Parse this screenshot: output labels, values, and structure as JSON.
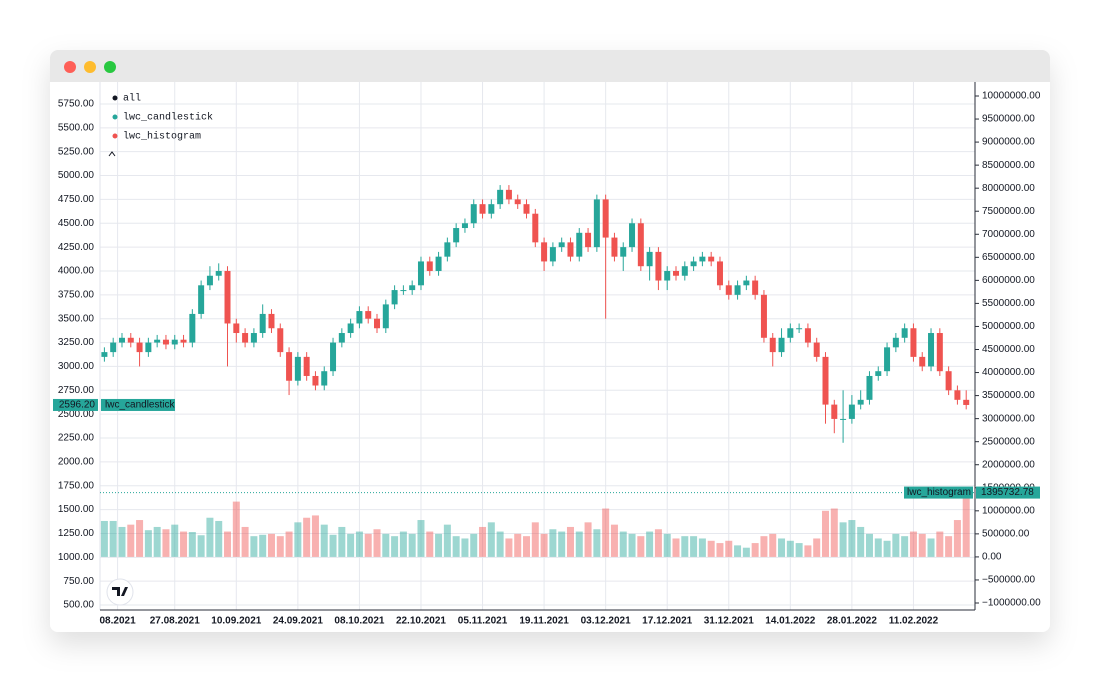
{
  "chart_data": {
    "type": "candlestick",
    "legend_title": "all",
    "legend_position": "top-left",
    "grid": true,
    "x": [
      "11.08.2021",
      "13.08.2021",
      "15.08.2021",
      "17.08.2021",
      "19.08.2021",
      "21.08.2021",
      "23.08.2021",
      "25.08.2021",
      "27.08.2021",
      "29.08.2021",
      "31.08.2021",
      "02.09.2021",
      "04.09.2021",
      "06.09.2021",
      "08.09.2021",
      "10.09.2021",
      "12.09.2021",
      "14.09.2021",
      "16.09.2021",
      "18.09.2021",
      "20.09.2021",
      "22.09.2021",
      "24.09.2021",
      "26.09.2021",
      "28.09.2021",
      "30.09.2021",
      "02.10.2021",
      "04.10.2021",
      "06.10.2021",
      "08.10.2021",
      "10.10.2021",
      "12.10.2021",
      "14.10.2021",
      "16.10.2021",
      "18.10.2021",
      "20.10.2021",
      "22.10.2021",
      "24.10.2021",
      "26.10.2021",
      "28.10.2021",
      "30.10.2021",
      "01.11.2021",
      "03.11.2021",
      "05.11.2021",
      "07.11.2021",
      "09.11.2021",
      "11.11.2021",
      "13.11.2021",
      "15.11.2021",
      "17.11.2021",
      "19.11.2021",
      "21.11.2021",
      "23.11.2021",
      "25.11.2021",
      "27.11.2021",
      "29.11.2021",
      "01.12.2021",
      "03.12.2021",
      "05.12.2021",
      "07.12.2021",
      "09.12.2021",
      "11.12.2021",
      "13.12.2021",
      "15.12.2021",
      "17.12.2021",
      "19.12.2021",
      "21.12.2021",
      "23.12.2021",
      "25.12.2021",
      "27.12.2021",
      "29.12.2021",
      "31.12.2021",
      "02.01.2022",
      "04.01.2022",
      "06.01.2022",
      "08.01.2022",
      "10.01.2022",
      "12.01.2022",
      "14.01.2022",
      "16.01.2022",
      "18.01.2022",
      "20.01.2022",
      "22.01.2022",
      "24.01.2022",
      "26.01.2022",
      "28.01.2022",
      "30.01.2022",
      "01.02.2022",
      "03.02.2022",
      "05.02.2022",
      "07.02.2022",
      "09.02.2022",
      "11.02.2022",
      "13.02.2022",
      "15.02.2022",
      "17.02.2022",
      "19.02.2022",
      "21.02.2022",
      "23.02.2022"
    ],
    "xlim": [
      "10.08.2021",
      "25.02.2022"
    ],
    "xticks": [
      {
        "value": "14.08.2021",
        "label": "08.2021"
      },
      "27.08.2021",
      "10.09.2021",
      "24.09.2021",
      "08.10.2021",
      "22.10.2021",
      "05.11.2021",
      "19.11.2021",
      "03.12.2021",
      "17.12.2021",
      "31.12.2021",
      "14.01.2022",
      "28.01.2022",
      "11.02.2022"
    ],
    "ylim": [
      448,
      5980
    ],
    "yticks": [
      {
        "value": 500,
        "label": "500.00"
      },
      {
        "value": 750,
        "label": "750.00"
      },
      {
        "value": 1000,
        "label": "1000.00"
      },
      {
        "value": 1250,
        "label": "1250.00"
      },
      {
        "value": 1500,
        "label": "1500.00"
      },
      {
        "value": 1750,
        "label": "1750.00"
      },
      {
        "value": 2000,
        "label": "2000.00"
      },
      {
        "value": 2250,
        "label": "2250.00"
      },
      {
        "value": 2500,
        "label": "2500.00"
      },
      {
        "value": 2750,
        "label": "2750.00"
      },
      {
        "value": 3000,
        "label": "3000.00"
      },
      {
        "value": 3250,
        "label": "3250.00"
      },
      {
        "value": 3500,
        "label": "3500.00"
      },
      {
        "value": 3750,
        "label": "3750.00"
      },
      {
        "value": 4000,
        "label": "4000.00"
      },
      {
        "value": 4250,
        "label": "4250.00"
      },
      {
        "value": 4500,
        "label": "4500.00"
      },
      {
        "value": 4750,
        "label": "4750.00"
      },
      {
        "value": 5000,
        "label": "5000.00"
      },
      {
        "value": 5250,
        "label": "5250.00"
      },
      {
        "value": 5500,
        "label": "5500.00"
      },
      {
        "value": 5750,
        "label": "5750.00"
      }
    ],
    "y2lim": [
      -1151800,
      10303700
    ],
    "y2ticks": [
      {
        "value": -1000000,
        "label": "−1000000.00"
      },
      {
        "value": -500000,
        "label": "−500000.00"
      },
      {
        "value": 0,
        "label": "0.00"
      },
      {
        "value": 500000,
        "label": "500000.00"
      },
      {
        "value": 1000000,
        "label": "1000000.00"
      },
      {
        "value": 1500000,
        "label": "1500000.00"
      },
      {
        "value": 2000000,
        "label": "2000000.00"
      },
      {
        "value": 2500000,
        "label": "2500000.00"
      },
      {
        "value": 3000000,
        "label": "3000000.00"
      },
      {
        "value": 3500000,
        "label": "3500000.00"
      },
      {
        "value": 4000000,
        "label": "4000000.00"
      },
      {
        "value": 4500000,
        "label": "4500000.00"
      },
      {
        "value": 5000000,
        "label": "5000000.00"
      },
      {
        "value": 5500000,
        "label": "5500000.00"
      },
      {
        "value": 6000000,
        "label": "6000000.00"
      },
      {
        "value": 6500000,
        "label": "6500000.00"
      },
      {
        "value": 7000000,
        "label": "7000000.00"
      },
      {
        "value": 7500000,
        "label": "7500000.00"
      },
      {
        "value": 8000000,
        "label": "8000000.00"
      },
      {
        "value": 8500000,
        "label": "8500000.00"
      },
      {
        "value": 9000000,
        "label": "9000000.00"
      },
      {
        "value": 9500000,
        "label": "9500000.00"
      },
      {
        "value": 10000000,
        "label": "10000000.00"
      }
    ],
    "series": [
      {
        "name": "lwc_candlestick",
        "type": "candlestick",
        "color": "#26a69a",
        "up_color": "#26a69a",
        "down_color": "#ef5350",
        "last_label": "2596.20",
        "open": [
          3100,
          3150,
          3250,
          3300,
          3250,
          3150,
          3250,
          3280,
          3230,
          3280,
          3250,
          3550,
          3850,
          3950,
          4000,
          3450,
          3350,
          3250,
          3350,
          3550,
          3400,
          3150,
          2850,
          3100,
          2900,
          2800,
          2950,
          3250,
          3350,
          3450,
          3580,
          3500,
          3400,
          3650,
          3800,
          3800,
          3850,
          4100,
          4000,
          4150,
          4300,
          4450,
          4500,
          4700,
          4600,
          4700,
          4850,
          4750,
          4700,
          4600,
          4300,
          4100,
          4250,
          4300,
          4150,
          4400,
          4250,
          4750,
          4350,
          4150,
          4250,
          4500,
          4050,
          4200,
          3900,
          4000,
          3950,
          4050,
          4100,
          4150,
          4100,
          3850,
          3750,
          3850,
          3900,
          3750,
          3300,
          3150,
          3300,
          3400,
          3400,
          3250,
          3100,
          2600,
          2450,
          2450,
          2600,
          2650,
          2900,
          2950,
          3200,
          3300,
          3400,
          3100,
          3000,
          3350,
          2950,
          2750,
          2650
        ],
        "high": [
          3200,
          3300,
          3350,
          3350,
          3300,
          3300,
          3330,
          3330,
          3330,
          3330,
          3600,
          3900,
          4050,
          4080,
          4050,
          3500,
          3400,
          3400,
          3650,
          3600,
          3450,
          3200,
          3150,
          3150,
          2950,
          3000,
          3300,
          3400,
          3500,
          3630,
          3630,
          3550,
          3700,
          3850,
          3850,
          3900,
          4150,
          4150,
          4200,
          4350,
          4500,
          4550,
          4750,
          4750,
          4750,
          4900,
          4900,
          4800,
          4750,
          4650,
          4350,
          4300,
          4350,
          4350,
          4450,
          4450,
          4800,
          4800,
          4400,
          4300,
          4550,
          4550,
          4250,
          4250,
          4050,
          4050,
          4100,
          4150,
          4200,
          4200,
          4150,
          3900,
          3900,
          3950,
          3950,
          3800,
          3350,
          3400,
          3450,
          3450,
          3450,
          3300,
          3150,
          2650,
          2750,
          2700,
          2750,
          2950,
          3000,
          3250,
          3350,
          3450,
          3450,
          3150,
          3400,
          3400,
          3000,
          2800,
          2750
        ],
        "low": [
          3050,
          3100,
          3200,
          3200,
          3000,
          3100,
          3200,
          3180,
          3180,
          3200,
          3200,
          3500,
          3800,
          3900,
          3000,
          3250,
          3200,
          3200,
          3300,
          3350,
          3100,
          2700,
          2800,
          2850,
          2750,
          2750,
          2900,
          3200,
          3300,
          3400,
          3450,
          3350,
          3350,
          3600,
          3750,
          3750,
          3800,
          3950,
          3950,
          4100,
          4250,
          4400,
          4450,
          4550,
          4550,
          4650,
          4700,
          4650,
          4550,
          4250,
          4000,
          4050,
          4200,
          4100,
          4100,
          4200,
          4200,
          3500,
          4100,
          4000,
          4200,
          4000,
          3900,
          3800,
          3800,
          3900,
          3900,
          4000,
          4050,
          4050,
          3800,
          3700,
          3700,
          3800,
          3700,
          3250,
          3000,
          3100,
          3250,
          3350,
          3200,
          3050,
          2400,
          2300,
          2200,
          2400,
          2550,
          2600,
          2850,
          2900,
          3150,
          3250,
          3050,
          2950,
          2950,
          2900,
          2700,
          2600,
          2550
        ],
        "close": [
          3150,
          3250,
          3300,
          3250,
          3150,
          3250,
          3280,
          3230,
          3280,
          3250,
          3550,
          3850,
          3950,
          4000,
          3450,
          3350,
          3250,
          3350,
          3550,
          3400,
          3150,
          2850,
          3100,
          2900,
          2800,
          2950,
          3250,
          3350,
          3450,
          3580,
          3500,
          3400,
          3650,
          3800,
          3800,
          3850,
          4100,
          4000,
          4150,
          4300,
          4450,
          4500,
          4700,
          4600,
          4700,
          4850,
          4750,
          4700,
          4600,
          4300,
          4100,
          4250,
          4300,
          4150,
          4400,
          4250,
          4750,
          4350,
          4150,
          4250,
          4500,
          4050,
          4200,
          3900,
          4000,
          3950,
          4050,
          4100,
          4150,
          4100,
          3850,
          3750,
          3850,
          3900,
          3750,
          3300,
          3150,
          3300,
          3400,
          3400,
          3250,
          3100,
          2600,
          2450,
          2450,
          2600,
          2650,
          2900,
          2950,
          3200,
          3300,
          3400,
          3100,
          3000,
          3350,
          2950,
          2750,
          2650,
          2596.2
        ]
      },
      {
        "name": "lwc_histogram",
        "type": "histogram",
        "axis": "y2",
        "color": "#ef5350",
        "up_color": "rgba(38,166,154,0.45)",
        "down_color": "rgba(239,83,80,0.45)",
        "line_color": "#26a69a",
        "values": [
          780000,
          780000,
          650000,
          700000,
          800000,
          580000,
          650000,
          600000,
          700000,
          550000,
          540000,
          470000,
          850000,
          780000,
          550000,
          1200000,
          650000,
          450000,
          480000,
          500000,
          450000,
          550000,
          750000,
          850000,
          900000,
          700000,
          480000,
          650000,
          500000,
          550000,
          500000,
          600000,
          500000,
          450000,
          550000,
          500000,
          800000,
          550000,
          500000,
          700000,
          450000,
          400000,
          500000,
          650000,
          750000,
          550000,
          400000,
          500000,
          450000,
          750000,
          500000,
          600000,
          550000,
          650000,
          550000,
          750000,
          600000,
          1050000,
          700000,
          550000,
          500000,
          450000,
          550000,
          600000,
          500000,
          400000,
          450000,
          450000,
          400000,
          350000,
          300000,
          350000,
          250000,
          200000,
          300000,
          450000,
          500000,
          400000,
          350000,
          300000,
          250000,
          400000,
          1000000,
          1050000,
          750000,
          800000,
          650000,
          500000,
          400000,
          350000,
          500000,
          450000,
          550000,
          500000,
          400000,
          550000,
          450000,
          800000,
          1395732.78
        ]
      }
    ]
  }
}
